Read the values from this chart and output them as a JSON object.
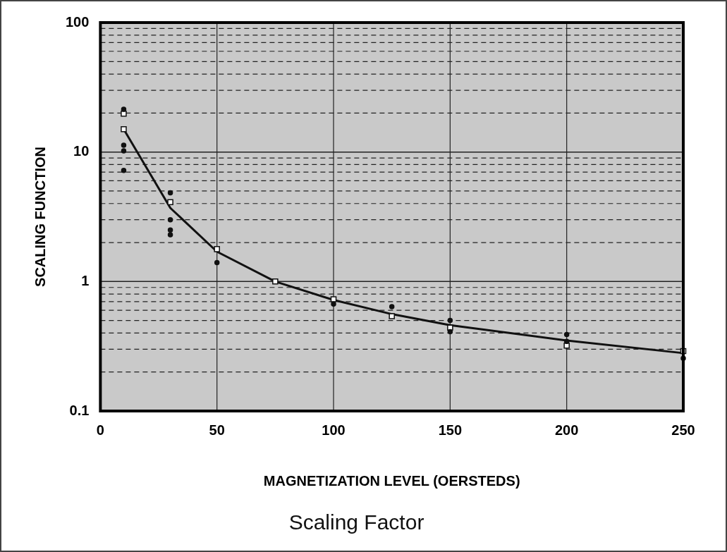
{
  "chart_data": {
    "type": "scatter",
    "title": "Scaling Factor",
    "xlabel": "MAGNETIZATION LEVEL (OERSTEDS)",
    "ylabel": "SCALING FUNCTION",
    "log": "y",
    "grid": true,
    "legend": false,
    "xlim": [
      0,
      250
    ],
    "xticks": [
      0,
      50,
      100,
      150,
      200,
      250
    ],
    "ylim": [
      0.1,
      100
    ],
    "yticks": [
      0.1,
      {
        "value": 0.2,
        "label": null
      },
      {
        "value": 0.3,
        "label": null
      },
      {
        "value": 0.4,
        "label": null
      },
      {
        "value": 0.5,
        "label": null
      },
      {
        "value": 0.6,
        "label": null
      },
      {
        "value": 0.7,
        "label": null
      },
      {
        "value": 0.8,
        "label": null
      },
      {
        "value": 0.9,
        "label": null
      },
      1,
      {
        "value": 2,
        "label": null
      },
      {
        "value": 3,
        "label": null
      },
      {
        "value": 4,
        "label": null
      },
      {
        "value": 5,
        "label": null
      },
      {
        "value": 6,
        "label": null
      },
      {
        "value": 7,
        "label": null
      },
      {
        "value": 8,
        "label": null
      },
      {
        "value": 9,
        "label": null
      },
      10,
      {
        "value": 20,
        "label": null
      },
      {
        "value": 30,
        "label": null
      },
      {
        "value": 40,
        "label": null
      },
      {
        "value": 50,
        "label": null
      },
      {
        "value": 60,
        "label": null
      },
      {
        "value": 70,
        "label": null
      },
      {
        "value": 80,
        "label": null
      },
      {
        "value": 90,
        "label": null
      },
      100
    ],
    "series": [
      {
        "type": "line",
        "marker": "none",
        "line_style": "solid",
        "color": "#111111",
        "x": [
          10,
          30,
          50,
          75,
          100,
          125,
          150,
          200,
          250
        ],
        "values": [
          15,
          3.7,
          1.7,
          1.0,
          0.72,
          0.56,
          0.46,
          0.35,
          0.28
        ]
      },
      {
        "marker": "square",
        "color": "#111111",
        "x": [
          10,
          10,
          30,
          50,
          75,
          100,
          125,
          150,
          200,
          250
        ],
        "values": [
          19.8,
          15,
          4.1,
          1.78,
          1.0,
          0.73,
          0.54,
          0.44,
          0.32,
          0.29
        ]
      },
      {
        "marker": "circle",
        "color": "#111111",
        "x": [
          10,
          10,
          10,
          10,
          30,
          30,
          30,
          30,
          50,
          100,
          125,
          150,
          150,
          200,
          200,
          250
        ],
        "values": [
          21.4,
          11.3,
          10.2,
          7.2,
          4.85,
          3.0,
          2.5,
          2.3,
          1.4,
          0.67,
          0.64,
          0.5,
          0.41,
          0.39,
          0.345,
          0.255
        ]
      }
    ]
  }
}
